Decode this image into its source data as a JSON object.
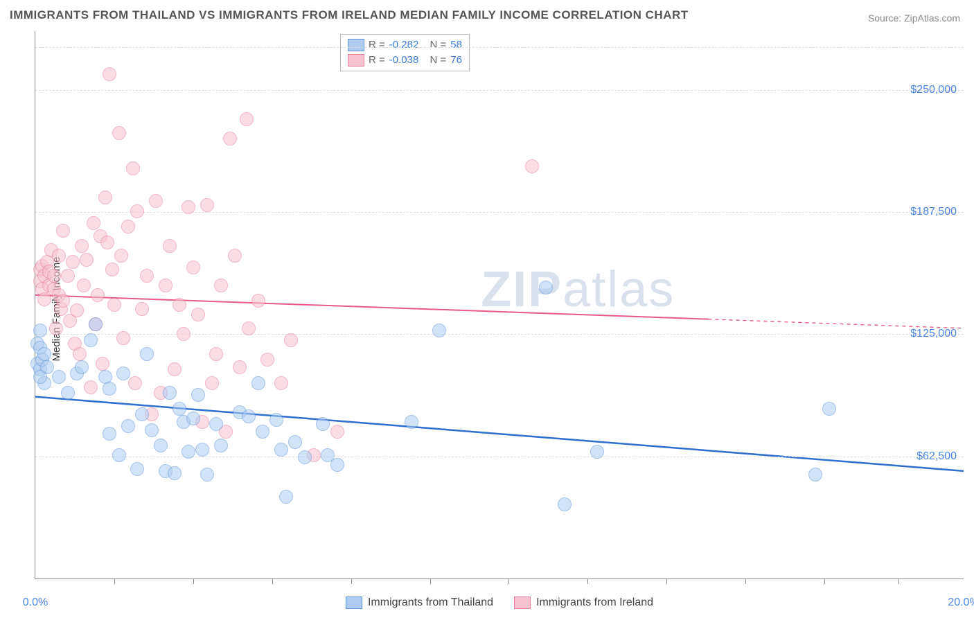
{
  "title": "IMMIGRANTS FROM THAILAND VS IMMIGRANTS FROM IRELAND MEDIAN FAMILY INCOME CORRELATION CHART",
  "source_label": "Source:",
  "source_value": "ZipAtlas.com",
  "y_axis_label": "Median Family Income",
  "watermark": {
    "part1": "ZIP",
    "part2": "atlas"
  },
  "chart": {
    "type": "scatter",
    "background_color": "#ffffff",
    "grid_color": "#dddddd",
    "axis_color": "#888888",
    "xlim": [
      0,
      20
    ],
    "ylim": [
      0,
      280000
    ],
    "y_ticks": [
      {
        "value": 62500,
        "label": "$62,500",
        "color": "#4a86e8"
      },
      {
        "value": 125000,
        "label": "$125,000",
        "color": "#4a86e8"
      },
      {
        "value": 187500,
        "label": "$187,500",
        "color": "#4a86e8"
      },
      {
        "value": 250000,
        "label": "$250,000",
        "color": "#4a86e8"
      }
    ],
    "y_top_grid": 272000,
    "y_grid_step": 62500,
    "x_ticks_major": [
      0,
      20
    ],
    "x_tick_labels": [
      {
        "value": 0,
        "label": "0.0%",
        "color": "#4a86e8"
      },
      {
        "value": 20,
        "label": "20.0%",
        "color": "#4a86e8"
      }
    ],
    "x_ticks_minor": [
      1.7,
      3.4,
      5.1,
      6.8,
      8.5,
      10.2,
      11.9,
      13.6,
      15.3,
      17.0,
      18.6
    ],
    "series": [
      {
        "id": "thailand",
        "label": "Immigrants from Thailand",
        "R": "-0.282",
        "N": "58",
        "fill": "#aeccf2",
        "stroke": "#5b93db",
        "fill_opacity": 0.55,
        "marker_radius": 9,
        "trend": {
          "color": "#2f6fd0",
          "width": 2.5,
          "y_at_x0": 93000,
          "y_at_xmax": 55000,
          "solid_until_x": 20
        },
        "points": [
          [
            0.05,
            120000
          ],
          [
            0.05,
            110000
          ],
          [
            0.1,
            127000
          ],
          [
            0.1,
            118000
          ],
          [
            0.1,
            107000
          ],
          [
            0.15,
            112000
          ],
          [
            0.2,
            100000
          ],
          [
            0.2,
            115000
          ],
          [
            0.25,
            108000
          ],
          [
            0.1,
            103000
          ],
          [
            0.5,
            103000
          ],
          [
            0.7,
            95000
          ],
          [
            0.9,
            105000
          ],
          [
            1.0,
            108000
          ],
          [
            1.2,
            122000
          ],
          [
            1.3,
            130000
          ],
          [
            1.5,
            103000
          ],
          [
            1.6,
            97000
          ],
          [
            1.6,
            74000
          ],
          [
            1.8,
            63000
          ],
          [
            1.9,
            105000
          ],
          [
            2.0,
            78000
          ],
          [
            2.2,
            56000
          ],
          [
            2.3,
            84000
          ],
          [
            2.4,
            115000
          ],
          [
            2.5,
            76000
          ],
          [
            2.7,
            68000
          ],
          [
            2.8,
            55000
          ],
          [
            2.9,
            95000
          ],
          [
            3.0,
            54000
          ],
          [
            3.1,
            87000
          ],
          [
            3.2,
            80000
          ],
          [
            3.3,
            65000
          ],
          [
            3.4,
            82000
          ],
          [
            3.5,
            94000
          ],
          [
            3.6,
            66000
          ],
          [
            3.7,
            53000
          ],
          [
            3.9,
            79000
          ],
          [
            4.0,
            68000
          ],
          [
            4.4,
            85000
          ],
          [
            4.6,
            83000
          ],
          [
            4.8,
            100000
          ],
          [
            4.9,
            75000
          ],
          [
            5.2,
            81000
          ],
          [
            5.3,
            66000
          ],
          [
            5.4,
            42000
          ],
          [
            5.6,
            70000
          ],
          [
            5.8,
            62000
          ],
          [
            6.2,
            79000
          ],
          [
            6.3,
            63000
          ],
          [
            6.5,
            58000
          ],
          [
            8.1,
            80000
          ],
          [
            8.7,
            127000
          ],
          [
            11.0,
            149000
          ],
          [
            11.4,
            38000
          ],
          [
            12.1,
            65000
          ],
          [
            16.8,
            53000
          ],
          [
            17.1,
            87000
          ]
        ]
      },
      {
        "id": "ireland",
        "label": "Immigrants from Ireland",
        "R": "-0.038",
        "N": "76",
        "fill": "#f7c2cf",
        "stroke": "#e87a9a",
        "fill_opacity": 0.55,
        "marker_radius": 9,
        "trend": {
          "color": "#e85a85",
          "width": 2,
          "y_at_x0": 145000,
          "y_at_xmax": 128000,
          "solid_until_x": 14.5
        },
        "points": [
          [
            0.1,
            158000
          ],
          [
            0.1,
            152000
          ],
          [
            0.15,
            148000
          ],
          [
            0.15,
            160000
          ],
          [
            0.2,
            143000
          ],
          [
            0.2,
            155000
          ],
          [
            0.25,
            162000
          ],
          [
            0.3,
            150000
          ],
          [
            0.3,
            157000
          ],
          [
            0.35,
            168000
          ],
          [
            0.4,
            148000
          ],
          [
            0.4,
            155000
          ],
          [
            0.45,
            128000
          ],
          [
            0.5,
            165000
          ],
          [
            0.5,
            145000
          ],
          [
            0.55,
            138000
          ],
          [
            0.6,
            178000
          ],
          [
            0.6,
            142000
          ],
          [
            0.7,
            155000
          ],
          [
            0.75,
            132000
          ],
          [
            0.8,
            162000
          ],
          [
            0.85,
            120000
          ],
          [
            0.9,
            137000
          ],
          [
            0.95,
            115000
          ],
          [
            1.0,
            170000
          ],
          [
            1.05,
            150000
          ],
          [
            1.1,
            163000
          ],
          [
            1.2,
            98000
          ],
          [
            1.25,
            182000
          ],
          [
            1.3,
            130000
          ],
          [
            1.35,
            145000
          ],
          [
            1.4,
            175000
          ],
          [
            1.45,
            110000
          ],
          [
            1.5,
            195000
          ],
          [
            1.55,
            172000
          ],
          [
            1.6,
            258000
          ],
          [
            1.65,
            158000
          ],
          [
            1.7,
            140000
          ],
          [
            1.8,
            228000
          ],
          [
            1.85,
            165000
          ],
          [
            1.9,
            123000
          ],
          [
            2.0,
            180000
          ],
          [
            2.1,
            210000
          ],
          [
            2.15,
            100000
          ],
          [
            2.2,
            188000
          ],
          [
            2.3,
            138000
          ],
          [
            2.4,
            155000
          ],
          [
            2.5,
            84000
          ],
          [
            2.6,
            193000
          ],
          [
            2.7,
            95000
          ],
          [
            2.8,
            150000
          ],
          [
            2.9,
            170000
          ],
          [
            3.0,
            107000
          ],
          [
            3.1,
            140000
          ],
          [
            3.2,
            125000
          ],
          [
            3.3,
            190000
          ],
          [
            3.4,
            159000
          ],
          [
            3.5,
            135000
          ],
          [
            3.6,
            80000
          ],
          [
            3.7,
            191000
          ],
          [
            3.8,
            100000
          ],
          [
            3.9,
            115000
          ],
          [
            4.0,
            150000
          ],
          [
            4.1,
            75000
          ],
          [
            4.2,
            225000
          ],
          [
            4.3,
            165000
          ],
          [
            4.4,
            108000
          ],
          [
            4.55,
            235000
          ],
          [
            4.6,
            128000
          ],
          [
            4.8,
            142000
          ],
          [
            5.0,
            112000
          ],
          [
            5.3,
            100000
          ],
          [
            5.5,
            122000
          ],
          [
            6.0,
            63000
          ],
          [
            6.5,
            75000
          ],
          [
            10.7,
            211000
          ]
        ]
      }
    ],
    "legend_top": {
      "R_label": "R =",
      "N_label": "N =",
      "value_color": "#3b7de0",
      "text_color": "#666666"
    },
    "legend_bottom_text_color": "#555555"
  }
}
